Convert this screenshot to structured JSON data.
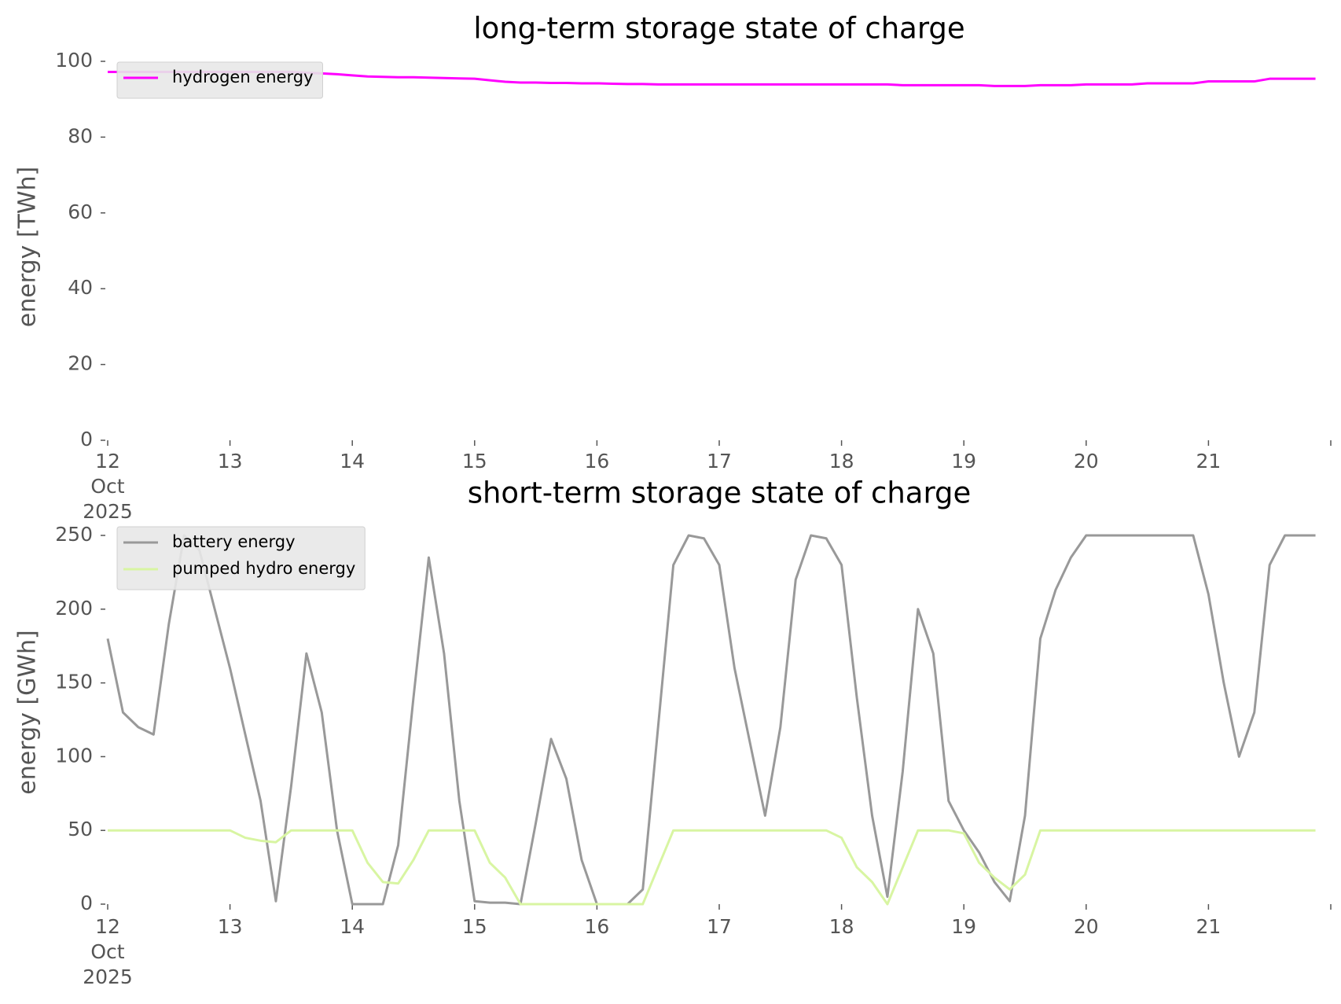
{
  "chart_data": [
    {
      "type": "line",
      "title": "long-term storage state of charge",
      "ylabel": "energy [TWh]",
      "x": [
        "2025-10-12T00:00",
        "2025-10-12T03:00",
        "2025-10-12T06:00",
        "2025-10-12T09:00",
        "2025-10-12T12:00",
        "2025-10-12T15:00",
        "2025-10-12T18:00",
        "2025-10-12T21:00",
        "2025-10-13T00:00",
        "2025-10-13T03:00",
        "2025-10-13T06:00",
        "2025-10-13T09:00",
        "2025-10-13T12:00",
        "2025-10-13T15:00",
        "2025-10-13T18:00",
        "2025-10-13T21:00",
        "2025-10-14T00:00",
        "2025-10-14T03:00",
        "2025-10-14T06:00",
        "2025-10-14T09:00",
        "2025-10-14T12:00",
        "2025-10-14T15:00",
        "2025-10-14T18:00",
        "2025-10-14T21:00",
        "2025-10-15T00:00",
        "2025-10-15T03:00",
        "2025-10-15T06:00",
        "2025-10-15T09:00",
        "2025-10-15T12:00",
        "2025-10-15T15:00",
        "2025-10-15T18:00",
        "2025-10-15T21:00",
        "2025-10-16T00:00",
        "2025-10-16T03:00",
        "2025-10-16T06:00",
        "2025-10-16T09:00",
        "2025-10-16T12:00",
        "2025-10-16T15:00",
        "2025-10-16T18:00",
        "2025-10-16T21:00",
        "2025-10-17T00:00",
        "2025-10-17T03:00",
        "2025-10-17T06:00",
        "2025-10-17T09:00",
        "2025-10-17T12:00",
        "2025-10-17T15:00",
        "2025-10-17T18:00",
        "2025-10-17T21:00",
        "2025-10-18T00:00",
        "2025-10-18T03:00",
        "2025-10-18T06:00",
        "2025-10-18T09:00",
        "2025-10-18T12:00",
        "2025-10-18T15:00",
        "2025-10-18T18:00",
        "2025-10-18T21:00",
        "2025-10-19T00:00",
        "2025-10-19T03:00",
        "2025-10-19T06:00",
        "2025-10-19T09:00",
        "2025-10-19T12:00",
        "2025-10-19T15:00",
        "2025-10-19T18:00",
        "2025-10-19T21:00",
        "2025-10-20T00:00",
        "2025-10-20T03:00",
        "2025-10-20T06:00",
        "2025-10-20T09:00",
        "2025-10-20T12:00",
        "2025-10-20T15:00",
        "2025-10-20T18:00",
        "2025-10-20T21:00",
        "2025-10-21T00:00",
        "2025-10-21T03:00",
        "2025-10-21T06:00",
        "2025-10-21T09:00",
        "2025-10-21T12:00",
        "2025-10-21T15:00",
        "2025-10-21T18:00",
        "2025-10-21T21:00"
      ],
      "series": [
        {
          "name": "hydrogen energy",
          "color": "#ff00ff",
          "values": [
            97.2,
            97.2,
            97.2,
            97.2,
            97.2,
            97.2,
            97.2,
            97.2,
            97.2,
            97.2,
            97.2,
            97.2,
            97.2,
            97,
            96.8,
            96.6,
            96.3,
            96,
            95.9,
            95.8,
            95.8,
            95.7,
            95.6,
            95.5,
            95.4,
            95,
            94.6,
            94.4,
            94.4,
            94.3,
            94.3,
            94.2,
            94.2,
            94.1,
            94,
            94,
            93.9,
            93.9,
            93.9,
            93.9,
            93.9,
            93.9,
            93.9,
            93.9,
            93.9,
            93.9,
            93.9,
            93.9,
            93.9,
            93.9,
            93.9,
            93.9,
            93.7,
            93.7,
            93.7,
            93.7,
            93.7,
            93.7,
            93.5,
            93.5,
            93.5,
            93.7,
            93.7,
            93.7,
            93.9,
            93.9,
            93.9,
            93.9,
            94.2,
            94.2,
            94.2,
            94.2,
            94.7,
            94.7,
            94.7,
            94.7,
            95.4,
            95.4,
            95.4,
            95.4
          ]
        }
      ],
      "xlim": [
        "2025-10-12T00:00",
        "2025-10-22T00:00"
      ],
      "xticks": [
        {
          "value": "2025-10-12T00:00",
          "label": "12\nOct\n2025"
        },
        {
          "value": "2025-10-13T00:00",
          "label": "13"
        },
        {
          "value": "2025-10-14T00:00",
          "label": "14"
        },
        {
          "value": "2025-10-15T00:00",
          "label": "15"
        },
        {
          "value": "2025-10-16T00:00",
          "label": "16"
        },
        {
          "value": "2025-10-17T00:00",
          "label": "17"
        },
        {
          "value": "2025-10-18T00:00",
          "label": "18"
        },
        {
          "value": "2025-10-19T00:00",
          "label": "19"
        },
        {
          "value": "2025-10-20T00:00",
          "label": "20"
        },
        {
          "value": "2025-10-21T00:00",
          "label": "21"
        },
        {
          "value": "2025-10-22T00:00",
          "label": null
        }
      ],
      "ylim": [
        0,
        100
      ],
      "yticks": [
        0,
        20,
        40,
        60,
        80,
        100
      ],
      "legend": "upper left"
    },
    {
      "type": "line",
      "title": "short-term storage state of charge",
      "ylabel": "energy [GWh]",
      "x": [
        "2025-10-12T00:00",
        "2025-10-12T03:00",
        "2025-10-12T06:00",
        "2025-10-12T09:00",
        "2025-10-12T12:00",
        "2025-10-12T15:00",
        "2025-10-12T18:00",
        "2025-10-12T21:00",
        "2025-10-13T00:00",
        "2025-10-13T03:00",
        "2025-10-13T06:00",
        "2025-10-13T09:00",
        "2025-10-13T12:00",
        "2025-10-13T15:00",
        "2025-10-13T18:00",
        "2025-10-13T21:00",
        "2025-10-14T00:00",
        "2025-10-14T03:00",
        "2025-10-14T06:00",
        "2025-10-14T09:00",
        "2025-10-14T12:00",
        "2025-10-14T15:00",
        "2025-10-14T18:00",
        "2025-10-14T21:00",
        "2025-10-15T00:00",
        "2025-10-15T03:00",
        "2025-10-15T06:00",
        "2025-10-15T09:00",
        "2025-10-15T12:00",
        "2025-10-15T15:00",
        "2025-10-15T18:00",
        "2025-10-15T21:00",
        "2025-10-16T00:00",
        "2025-10-16T03:00",
        "2025-10-16T06:00",
        "2025-10-16T09:00",
        "2025-10-16T12:00",
        "2025-10-16T15:00",
        "2025-10-16T18:00",
        "2025-10-16T21:00",
        "2025-10-17T00:00",
        "2025-10-17T03:00",
        "2025-10-17T06:00",
        "2025-10-17T09:00",
        "2025-10-17T12:00",
        "2025-10-17T15:00",
        "2025-10-17T18:00",
        "2025-10-17T21:00",
        "2025-10-18T00:00",
        "2025-10-18T03:00",
        "2025-10-18T06:00",
        "2025-10-18T09:00",
        "2025-10-18T12:00",
        "2025-10-18T15:00",
        "2025-10-18T18:00",
        "2025-10-18T21:00",
        "2025-10-19T00:00",
        "2025-10-19T03:00",
        "2025-10-19T06:00",
        "2025-10-19T09:00",
        "2025-10-19T12:00",
        "2025-10-19T15:00",
        "2025-10-19T18:00",
        "2025-10-19T21:00",
        "2025-10-20T00:00",
        "2025-10-20T03:00",
        "2025-10-20T06:00",
        "2025-10-20T09:00",
        "2025-10-20T12:00",
        "2025-10-20T15:00",
        "2025-10-20T18:00",
        "2025-10-20T21:00",
        "2025-10-21T00:00",
        "2025-10-21T03:00",
        "2025-10-21T06:00",
        "2025-10-21T09:00",
        "2025-10-21T12:00",
        "2025-10-21T15:00",
        "2025-10-21T18:00",
        "2025-10-21T21:00"
      ],
      "series": [
        {
          "name": "battery energy",
          "color": "#999999",
          "values": [
            180,
            130,
            120,
            115,
            190,
            250,
            240,
            200,
            160,
            115,
            70,
            2,
            80,
            170,
            130,
            50,
            0,
            0,
            0,
            40,
            140,
            235,
            170,
            70,
            2,
            1,
            1,
            0,
            55,
            112,
            85,
            30,
            0,
            0,
            0,
            10,
            120,
            230,
            250,
            248,
            230,
            160,
            110,
            60,
            120,
            220,
            250,
            248,
            230,
            140,
            60,
            5,
            90,
            200,
            170,
            70,
            50,
            35,
            15,
            2,
            60,
            180,
            213,
            235,
            250,
            250,
            250,
            250,
            250,
            250,
            250,
            250,
            210,
            150,
            100,
            130,
            230,
            250,
            250,
            250
          ]
        },
        {
          "name": "pumped hydro energy",
          "color": "#d8f5a2",
          "values": [
            50,
            50,
            50,
            50,
            50,
            50,
            50,
            50,
            50,
            45,
            43,
            42,
            50,
            50,
            50,
            50,
            50,
            28,
            15,
            14,
            30,
            50,
            50,
            50,
            50,
            28,
            18,
            0,
            0,
            0,
            0,
            0,
            0,
            0,
            0,
            0,
            25,
            50,
            50,
            50,
            50,
            50,
            50,
            50,
            50,
            50,
            50,
            50,
            45,
            25,
            15,
            0,
            25,
            50,
            50,
            50,
            48,
            28,
            18,
            10,
            20,
            50,
            50,
            50,
            50,
            50,
            50,
            50,
            50,
            50,
            50,
            50,
            50,
            50,
            50,
            50,
            50,
            50,
            50,
            50
          ]
        }
      ],
      "xlim": [
        "2025-10-12T00:00",
        "2025-10-22T00:00"
      ],
      "xticks": [
        {
          "value": "2025-10-12T00:00",
          "label": "12\nOct\n2025"
        },
        {
          "value": "2025-10-13T00:00",
          "label": "13"
        },
        {
          "value": "2025-10-14T00:00",
          "label": "14"
        },
        {
          "value": "2025-10-15T00:00",
          "label": "15"
        },
        {
          "value": "2025-10-16T00:00",
          "label": "16"
        },
        {
          "value": "2025-10-17T00:00",
          "label": "17"
        },
        {
          "value": "2025-10-18T00:00",
          "label": "18"
        },
        {
          "value": "2025-10-19T00:00",
          "label": "19"
        },
        {
          "value": "2025-10-20T00:00",
          "label": "20"
        },
        {
          "value": "2025-10-21T00:00",
          "label": "21"
        },
        {
          "value": "2025-10-22T00:00",
          "label": null
        }
      ],
      "ylim": [
        0,
        250
      ],
      "yticks": [
        0,
        50,
        100,
        150,
        200,
        250
      ],
      "legend": "upper left"
    }
  ]
}
